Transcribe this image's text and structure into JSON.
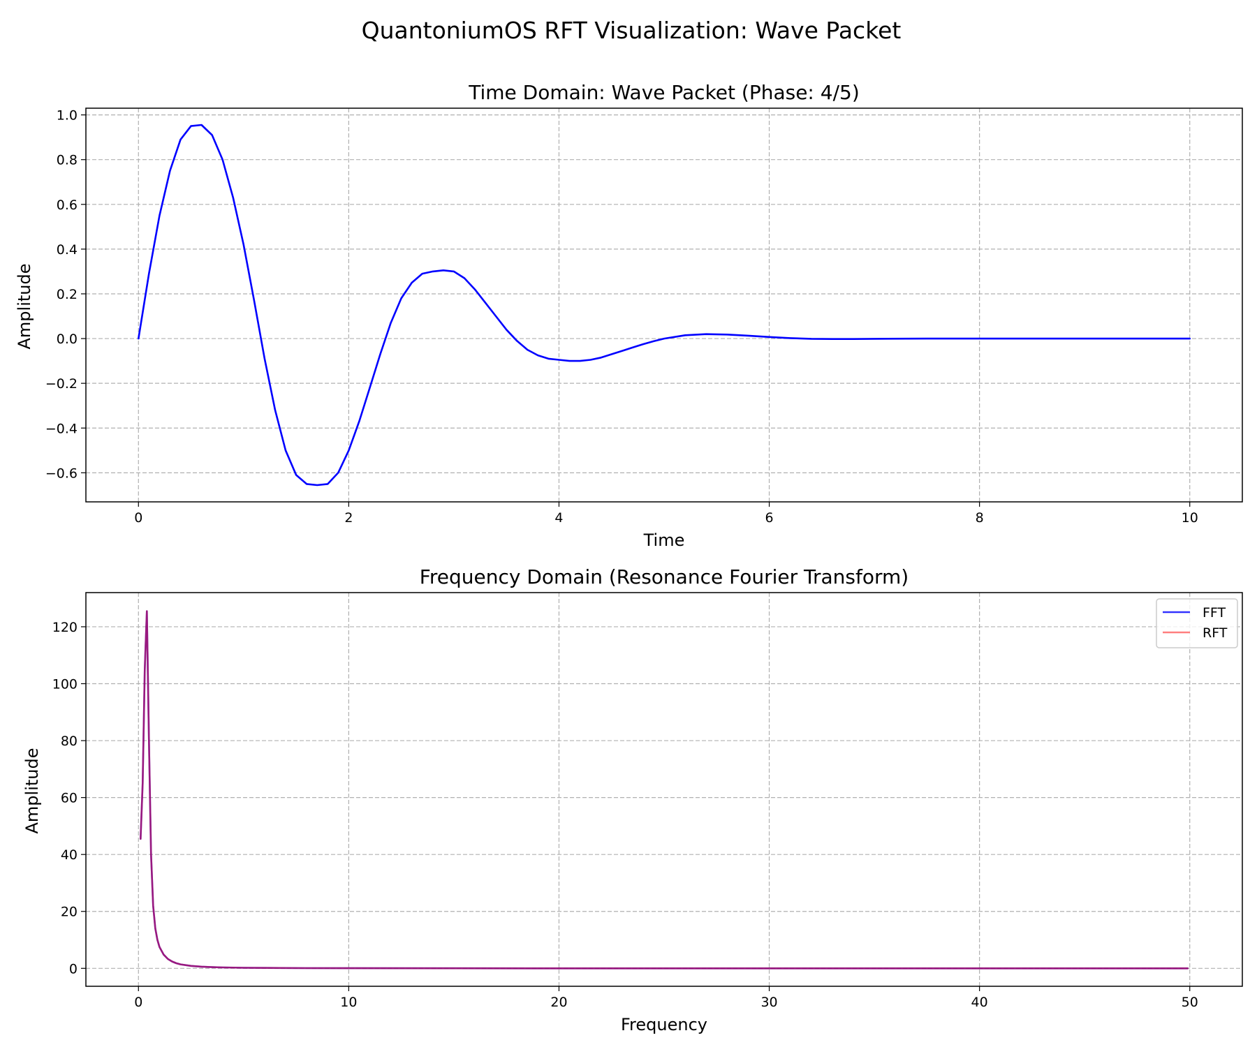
{
  "figure": {
    "suptitle": "QuantoniumOS RFT Visualization: Wave Packet"
  },
  "chart_data": [
    {
      "type": "line",
      "title": "Time Domain: Wave Packet (Phase: 4/5)",
      "xlabel": "Time",
      "ylabel": "Amplitude",
      "xlim": [
        -0.5,
        10.5
      ],
      "ylim": [
        -0.73,
        1.03
      ],
      "xticks": [
        0,
        2,
        4,
        6,
        8,
        10
      ],
      "xtick_labels": [
        "0",
        "2",
        "4",
        "6",
        "8",
        "10"
      ],
      "yticks": [
        1.0,
        0.8,
        0.6,
        0.4,
        0.2,
        0.0,
        -0.2,
        -0.4,
        -0.6
      ],
      "ytick_labels": [
        "1.0",
        "0.8",
        "0.6",
        "0.4",
        "0.2",
        "0.0",
        "−0.2",
        "−0.4",
        "−0.6"
      ],
      "grid": true,
      "series": [
        {
          "color": "#0000ff",
          "x": [
            0,
            0.1,
            0.2,
            0.3,
            0.4,
            0.5,
            0.6,
            0.7,
            0.8,
            0.9,
            1.0,
            1.1,
            1.2,
            1.3,
            1.4,
            1.5,
            1.6,
            1.7,
            1.8,
            1.9,
            2.0,
            2.1,
            2.2,
            2.3,
            2.4,
            2.5,
            2.6,
            2.7,
            2.8,
            2.9,
            3.0,
            3.1,
            3.2,
            3.3,
            3.4,
            3.5,
            3.6,
            3.7,
            3.8,
            3.9,
            4.0,
            4.1,
            4.2,
            4.3,
            4.4,
            4.5,
            4.6,
            4.7,
            4.8,
            4.9,
            5.0,
            5.2,
            5.4,
            5.6,
            5.8,
            6.0,
            6.2,
            6.4,
            6.6,
            6.8,
            7.0,
            7.5,
            8.0,
            8.5,
            9.0,
            9.5,
            10.0
          ],
          "y": [
            0.0,
            0.29,
            0.55,
            0.75,
            0.89,
            0.95,
            0.955,
            0.91,
            0.8,
            0.63,
            0.42,
            0.17,
            -0.09,
            -0.32,
            -0.5,
            -0.61,
            -0.65,
            -0.655,
            -0.65,
            -0.6,
            -0.5,
            -0.37,
            -0.22,
            -0.07,
            0.07,
            0.18,
            0.25,
            0.29,
            0.3,
            0.305,
            0.3,
            0.27,
            0.22,
            0.16,
            0.1,
            0.04,
            -0.01,
            -0.05,
            -0.075,
            -0.09,
            -0.095,
            -0.1,
            -0.1,
            -0.095,
            -0.085,
            -0.07,
            -0.055,
            -0.04,
            -0.025,
            -0.012,
            0.0,
            0.015,
            0.02,
            0.018,
            0.013,
            0.007,
            0.002,
            -0.001,
            -0.002,
            -0.002,
            -0.001,
            0.0,
            0.0,
            0.0,
            0.0,
            0.0,
            0.0
          ]
        }
      ]
    },
    {
      "type": "line",
      "title": "Frequency Domain (Resonance Fourier Transform)",
      "xlabel": "Frequency",
      "ylabel": "Amplitude",
      "xlim": [
        -2.5,
        52.5
      ],
      "ylim": [
        -6.3,
        132
      ],
      "xticks": [
        0,
        10,
        20,
        30,
        40,
        50
      ],
      "xtick_labels": [
        "0",
        "10",
        "20",
        "30",
        "40",
        "50"
      ],
      "yticks": [
        120,
        100,
        80,
        60,
        40,
        20,
        0
      ],
      "ytick_labels": [
        "120",
        "100",
        "80",
        "60",
        "40",
        "20",
        "0"
      ],
      "grid": true,
      "legend_position": "top-right",
      "series": [
        {
          "name": "FFT",
          "color": "#0000ff",
          "opacity": 0.8,
          "x": [
            0.1,
            0.2,
            0.3,
            0.4,
            0.5,
            0.6,
            0.7,
            0.8,
            0.9,
            1.0,
            1.2,
            1.4,
            1.6,
            1.8,
            2.0,
            2.5,
            3.0,
            3.5,
            4.0,
            5.0,
            6.0,
            8.0,
            10.0,
            15.0,
            20.0,
            30.0,
            40.0,
            49.9
          ],
          "y": [
            45.5,
            65,
            105,
            125.5,
            80,
            40,
            22,
            14,
            10,
            7.5,
            4.8,
            3.3,
            2.4,
            1.8,
            1.4,
            0.85,
            0.58,
            0.42,
            0.32,
            0.2,
            0.14,
            0.08,
            0.05,
            0.02,
            0.01,
            0.005,
            0.003,
            0.002
          ]
        },
        {
          "name": "RFT",
          "color": "#ff0000",
          "opacity": 0.5,
          "x": [
            0.1,
            0.2,
            0.3,
            0.4,
            0.5,
            0.6,
            0.7,
            0.8,
            0.9,
            1.0,
            1.2,
            1.4,
            1.6,
            1.8,
            2.0,
            2.5,
            3.0,
            3.5,
            4.0,
            5.0,
            6.0,
            8.0,
            10.0,
            15.0,
            20.0,
            30.0,
            40.0,
            49.9
          ],
          "y": [
            45.5,
            65,
            105,
            125.5,
            80,
            40,
            22,
            14,
            10,
            7.5,
            4.8,
            3.3,
            2.4,
            1.8,
            1.4,
            0.85,
            0.58,
            0.42,
            0.32,
            0.2,
            0.14,
            0.08,
            0.05,
            0.02,
            0.01,
            0.005,
            0.003,
            0.002
          ]
        }
      ]
    }
  ]
}
